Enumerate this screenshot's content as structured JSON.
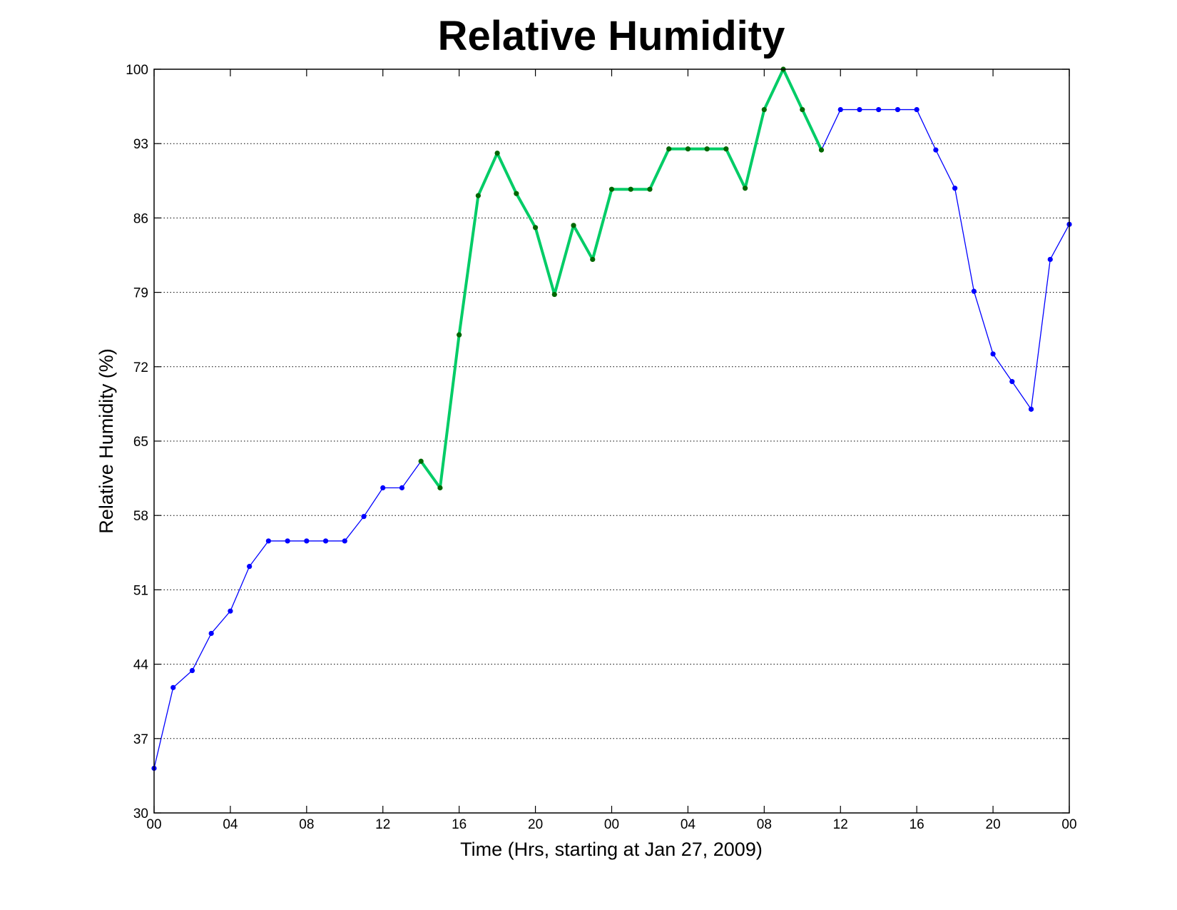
{
  "chart_data": {
    "type": "line",
    "title": "Relative Humidity",
    "xlabel": "Time (Hrs, starting at Jan 27, 2009)",
    "ylabel": "Relative Humidity (%)",
    "xlim": [
      0,
      48
    ],
    "ylim": [
      30,
      100
    ],
    "grid": "y-dotted",
    "x_ticks": [
      0,
      4,
      8,
      12,
      16,
      20,
      24,
      28,
      32,
      36,
      40,
      44,
      48
    ],
    "x_tick_labels": [
      "00",
      "04",
      "08",
      "12",
      "16",
      "20",
      "00",
      "04",
      "08",
      "12",
      "16",
      "20",
      "00"
    ],
    "y_ticks": [
      30,
      37,
      44,
      51,
      58,
      65,
      72,
      79,
      86,
      93,
      100
    ],
    "y_tick_labels": [
      "30",
      "37",
      "44",
      "51",
      "58",
      "65",
      "72",
      "79",
      "86",
      "93",
      "100"
    ],
    "x": [
      0,
      1,
      2,
      3,
      4,
      5,
      6,
      7,
      8,
      9,
      10,
      11,
      12,
      13,
      14,
      15,
      16,
      17,
      18,
      19,
      20,
      21,
      22,
      23,
      24,
      25,
      26,
      27,
      28,
      29,
      30,
      31,
      32,
      33,
      34,
      35,
      36,
      37,
      38,
      39,
      40,
      41,
      42,
      43,
      44,
      45,
      46,
      47,
      48
    ],
    "series": [
      {
        "values": [
          34.2,
          41.8,
          43.4,
          46.9,
          49.0,
          53.2,
          55.6,
          55.6,
          55.6,
          55.6,
          55.6,
          57.9,
          60.6,
          60.6,
          63.1,
          60.6,
          75.0,
          88.1,
          92.1,
          88.3,
          85.1,
          78.8,
          85.3,
          82.1,
          88.7,
          88.7,
          88.7,
          92.5,
          92.5,
          92.5,
          92.5,
          88.8,
          96.2,
          100,
          96.2,
          92.4,
          96.2,
          96.2,
          96.2,
          96.2,
          96.2,
          92.4,
          88.8,
          79.1,
          73.2,
          70.6,
          68.0,
          82.1,
          85.4
        ],
        "color": "#0000ff",
        "marker_color": "#0000ff"
      },
      {
        "x_start": 14,
        "x_end": 35,
        "color": "#00cc66",
        "marker_color": "#006600"
      }
    ]
  }
}
